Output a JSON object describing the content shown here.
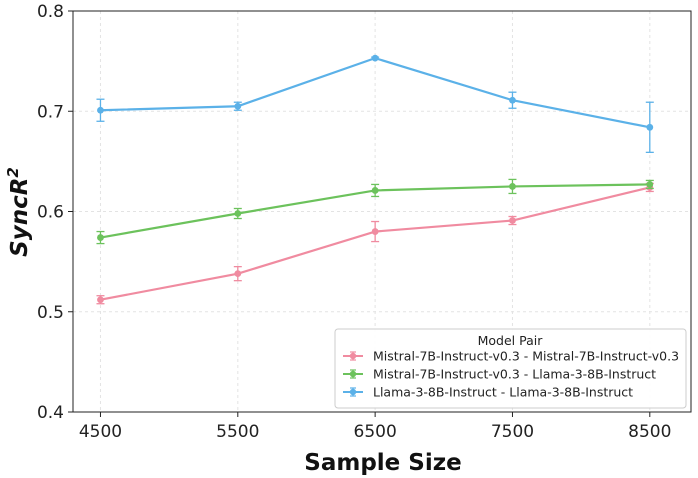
{
  "chart_data": {
    "type": "line",
    "xlabel": "Sample Size",
    "ylabel_main": "SyncR",
    "ylabel_sup": "2",
    "x": [
      4500,
      5500,
      6500,
      7500,
      8500
    ],
    "xticks": [
      "4500",
      "5500",
      "6500",
      "7500",
      "8500"
    ],
    "ylim": [
      0.4,
      0.8
    ],
    "yticks": [
      "0.4",
      "0.5",
      "0.6",
      "0.7",
      "0.8"
    ],
    "grid": true,
    "legend_title": "Model Pair",
    "legend_position": "lower-right",
    "series": [
      {
        "name": "Mistral-7B-Instruct-v0.3 - Mistral-7B-Instruct-v0.3",
        "color": "#f08ba0",
        "values": [
          0.512,
          0.538,
          0.58,
          0.591,
          0.624
        ],
        "errors": [
          0.004,
          0.007,
          0.01,
          0.004,
          0.004
        ]
      },
      {
        "name": "Mistral-7B-Instruct-v0.3 - Llama-3-8B-Instruct",
        "color": "#6cc25c",
        "values": [
          0.574,
          0.598,
          0.621,
          0.625,
          0.627
        ],
        "errors": [
          0.006,
          0.005,
          0.006,
          0.007,
          0.004
        ]
      },
      {
        "name": "Llama-3-8B-Instruct - Llama-3-8B-Instruct",
        "color": "#5bb1e8",
        "values": [
          0.701,
          0.705,
          0.753,
          0.711,
          0.684
        ],
        "errors": [
          0.011,
          0.004,
          0.001,
          0.008,
          0.025
        ]
      }
    ]
  }
}
